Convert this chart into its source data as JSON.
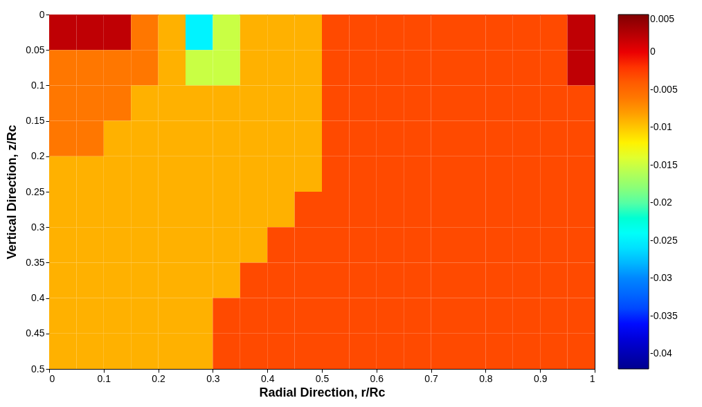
{
  "chart_data": {
    "type": "heatmap",
    "xlabel": "Radial Direction, r/Rc",
    "ylabel": "Vertical Direction, z/Rc",
    "x": [
      0.025,
      0.075,
      0.125,
      0.175,
      0.225,
      0.275,
      0.325,
      0.375,
      0.425,
      0.475,
      0.525,
      0.575,
      0.625,
      0.675,
      0.725,
      0.775,
      0.825,
      0.875,
      0.925,
      0.975
    ],
    "y": [
      0.025,
      0.075,
      0.125,
      0.175,
      0.225,
      0.275,
      0.325,
      0.375,
      0.425,
      0.475
    ],
    "cells": [
      [
        0.002,
        0.002,
        0.002,
        -0.006,
        -0.009,
        -0.025,
        -0.015,
        -0.009,
        -0.009,
        -0.009,
        -0.003,
        -0.003,
        -0.003,
        -0.003,
        -0.003,
        -0.003,
        -0.003,
        -0.003,
        -0.003,
        0.002
      ],
      [
        -0.006,
        -0.006,
        -0.006,
        -0.006,
        -0.009,
        -0.015,
        -0.015,
        -0.009,
        -0.009,
        -0.009,
        -0.003,
        -0.003,
        -0.003,
        -0.003,
        -0.003,
        -0.003,
        -0.003,
        -0.003,
        -0.003,
        0.002
      ],
      [
        -0.006,
        -0.006,
        -0.006,
        -0.009,
        -0.009,
        -0.009,
        -0.009,
        -0.009,
        -0.009,
        -0.009,
        -0.003,
        -0.003,
        -0.003,
        -0.003,
        -0.003,
        -0.003,
        -0.003,
        -0.003,
        -0.003,
        -0.003
      ],
      [
        -0.006,
        -0.006,
        -0.009,
        -0.009,
        -0.009,
        -0.009,
        -0.009,
        -0.009,
        -0.009,
        -0.009,
        -0.003,
        -0.003,
        -0.003,
        -0.003,
        -0.003,
        -0.003,
        -0.003,
        -0.003,
        -0.003,
        -0.003
      ],
      [
        -0.009,
        -0.009,
        -0.009,
        -0.009,
        -0.009,
        -0.009,
        -0.009,
        -0.009,
        -0.009,
        -0.009,
        -0.003,
        -0.003,
        -0.003,
        -0.003,
        -0.003,
        -0.003,
        -0.003,
        -0.003,
        -0.003,
        -0.003
      ],
      [
        -0.009,
        -0.009,
        -0.009,
        -0.009,
        -0.009,
        -0.009,
        -0.009,
        -0.009,
        -0.009,
        -0.003,
        -0.003,
        -0.003,
        -0.003,
        -0.003,
        -0.003,
        -0.003,
        -0.003,
        -0.003,
        -0.003,
        -0.003
      ],
      [
        -0.009,
        -0.009,
        -0.009,
        -0.009,
        -0.009,
        -0.009,
        -0.009,
        -0.009,
        -0.003,
        -0.003,
        -0.003,
        -0.003,
        -0.003,
        -0.003,
        -0.003,
        -0.003,
        -0.003,
        -0.003,
        -0.003,
        -0.003
      ],
      [
        -0.009,
        -0.009,
        -0.009,
        -0.009,
        -0.009,
        -0.009,
        -0.009,
        -0.003,
        -0.003,
        -0.003,
        -0.003,
        -0.003,
        -0.003,
        -0.003,
        -0.003,
        -0.003,
        -0.003,
        -0.003,
        -0.003,
        -0.003
      ],
      [
        -0.009,
        -0.009,
        -0.009,
        -0.009,
        -0.009,
        -0.009,
        -0.003,
        -0.003,
        -0.003,
        -0.003,
        -0.003,
        -0.003,
        -0.003,
        -0.003,
        -0.003,
        -0.003,
        -0.003,
        -0.003,
        -0.003,
        -0.003
      ],
      [
        -0.009,
        -0.009,
        -0.009,
        -0.009,
        -0.009,
        -0.009,
        -0.003,
        -0.003,
        -0.003,
        -0.003,
        -0.003,
        -0.003,
        -0.003,
        -0.003,
        -0.003,
        -0.003,
        -0.003,
        -0.003,
        -0.003,
        -0.003
      ]
    ],
    "xlim": [
      0,
      1
    ],
    "xticks": [
      0,
      0.1,
      0.2,
      0.3,
      0.4,
      0.5,
      0.6,
      0.7,
      0.8,
      0.9,
      1
    ],
    "ylim": [
      0.5,
      0
    ],
    "yticks": [
      0,
      0.05,
      0.1,
      0.15,
      0.2,
      0.25,
      0.3,
      0.35,
      0.4,
      0.45,
      0.5
    ],
    "clim": [
      -0.042,
      0.005
    ],
    "cticks": [
      0.005,
      0,
      -0.005,
      -0.01,
      -0.015,
      -0.02,
      -0.025,
      -0.03,
      -0.035,
      -0.04
    ]
  }
}
